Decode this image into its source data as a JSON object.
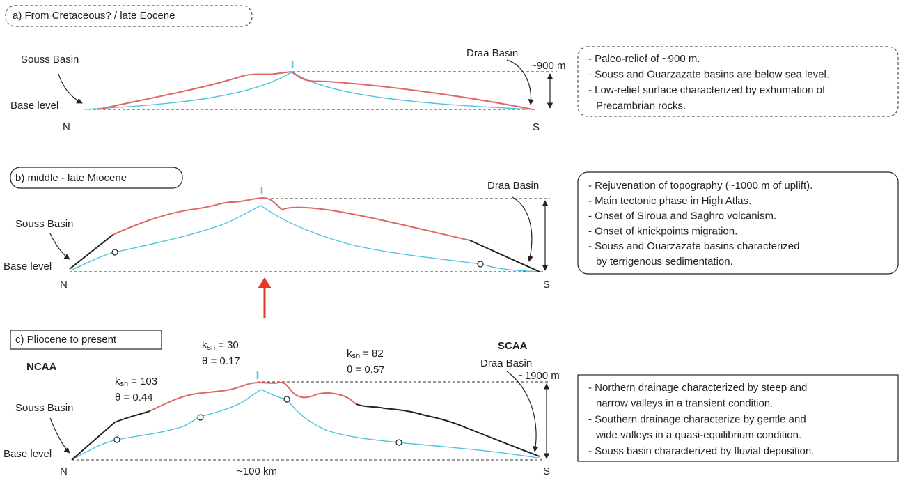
{
  "panels": [
    {
      "title": "a) From Cretaceous? / late Eocene",
      "left_basin": "Souss Basin",
      "right_basin": "Draa Basin",
      "relief": "~900 m",
      "base_level": "Base level",
      "north": "N",
      "south": "S",
      "notes": [
        "- Paleo-relief of ~900 m.",
        "- Souss and Ouarzazate basins are below sea level.",
        "- Low-relief surface characterized by exhumation of",
        "Precambrian rocks."
      ]
    },
    {
      "title": "b) middle - late Miocene",
      "left_basin": "Souss Basin",
      "right_basin": "Draa Basin",
      "base_level": "Base level",
      "north": "N",
      "south": "S",
      "notes": [
        "- Rejuvenation of topography (~1000 m of uplift).",
        "- Main tectonic phase in High Atlas.",
        "- Onset of Siroua and Saghro volcanism.",
        "- Onset of knickpoints migration.",
        "- Souss and Ouarzazate basins characterized",
        "by terrigenous sedimentation."
      ]
    },
    {
      "title": "c) Pliocene to present",
      "north_region": "NCAA",
      "south_region": "SCAA",
      "steepness": [
        {
          "symbol": "k",
          "subscript": "sn",
          "value": "= 103",
          "theta": "θ = 0.44"
        },
        {
          "symbol": "k",
          "subscript": "sn",
          "value": "= 30",
          "theta": "θ = 0.17"
        },
        {
          "symbol": "k",
          "subscript": "sn",
          "value": "= 82",
          "theta": "θ = 0.57"
        }
      ],
      "left_basin": "Souss Basin",
      "right_basin": "Draa Basin",
      "relief": "~1900 m",
      "base_level": "Base level",
      "north": "N",
      "south": "S",
      "distance": "~100 km",
      "notes": [
        "- Northern drainage characterized by steep and",
        "narrow valleys in a transient condition.",
        "- Southern drainage characterize by gentle and",
        "wide valleys in a quasi-equilibrium condition.",
        "- Souss basin characterized by fluvial deposition."
      ]
    }
  ]
}
